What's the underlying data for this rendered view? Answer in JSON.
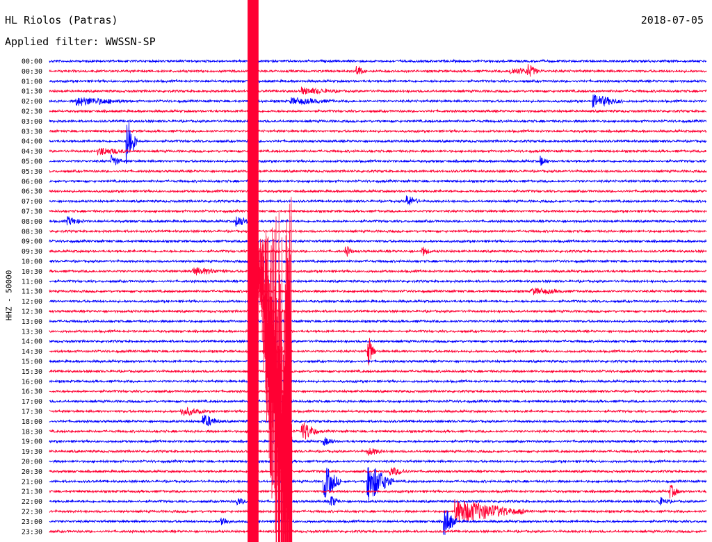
{
  "header": {
    "station": "HL Riolos (Patras)",
    "date": "2018-07-05",
    "filter": "Applied filter: WWSSN-SP"
  },
  "chart_data": {
    "type": "line",
    "title": "HL Riolos (Patras)",
    "subtitle": "Applied filter: WWSSN-SP",
    "ylabel": "HHZ - 50000",
    "xlabel": "",
    "grid": false,
    "colors": {
      "odd_hour": "#0000ff",
      "half_hour": "#ff0033"
    },
    "rows": [
      "00:00",
      "00:30",
      "01:00",
      "01:30",
      "02:00",
      "02:30",
      "03:00",
      "03:30",
      "04:00",
      "04:30",
      "05:00",
      "05:30",
      "06:00",
      "06:30",
      "07:00",
      "07:30",
      "08:00",
      "08:30",
      "09:00",
      "09:30",
      "10:00",
      "10:30",
      "11:00",
      "11:30",
      "12:00",
      "12:30",
      "13:00",
      "13:30",
      "14:00",
      "14:30",
      "15:00",
      "15:30",
      "16:00",
      "16:30",
      "17:00",
      "17:30",
      "18:00",
      "18:30",
      "19:00",
      "19:30",
      "20:00",
      "20:30",
      "21:00",
      "21:30",
      "22:00",
      "22:30",
      "23:00",
      "23:30"
    ],
    "row_x_range": [
      0,
      30
    ],
    "events": [
      {
        "row": 1,
        "x": 14.0,
        "amp": 1.2,
        "dur": 0.4
      },
      {
        "row": 1,
        "x": 21.0,
        "amp": 0.6,
        "dur": 1.6
      },
      {
        "row": 1,
        "x": 21.8,
        "amp": 1.2,
        "dur": 0.5
      },
      {
        "row": 3,
        "x": 11.5,
        "amp": 0.6,
        "dur": 1.8
      },
      {
        "row": 4,
        "x": 1.2,
        "amp": 0.8,
        "dur": 2.4
      },
      {
        "row": 4,
        "x": 11.0,
        "amp": 0.6,
        "dur": 2.0
      },
      {
        "row": 4,
        "x": 24.8,
        "amp": 1.2,
        "dur": 1.4
      },
      {
        "row": 8,
        "x": 3.5,
        "amp": 6.0,
        "dur": 0.5
      },
      {
        "row": 9,
        "x": 2.2,
        "amp": 0.7,
        "dur": 1.5
      },
      {
        "row": 10,
        "x": 2.8,
        "amp": 1.2,
        "dur": 0.5
      },
      {
        "row": 10,
        "x": 22.4,
        "amp": 1.0,
        "dur": 0.4
      },
      {
        "row": 14,
        "x": 16.3,
        "amp": 1.2,
        "dur": 0.6
      },
      {
        "row": 16,
        "x": 0.8,
        "amp": 0.8,
        "dur": 0.8
      },
      {
        "row": 16,
        "x": 8.5,
        "amp": 1.2,
        "dur": 0.6
      },
      {
        "row": 19,
        "x": 13.5,
        "amp": 1.1,
        "dur": 0.4
      },
      {
        "row": 19,
        "x": 17.0,
        "amp": 1.0,
        "dur": 0.4
      },
      {
        "row": 21,
        "x": 6.5,
        "amp": 0.7,
        "dur": 1.6
      },
      {
        "row": 23,
        "x": 22.0,
        "amp": 0.6,
        "dur": 1.6
      },
      {
        "row": 29,
        "x": 14.5,
        "amp": 3.6,
        "dur": 0.4
      },
      {
        "row": 35,
        "x": 6.0,
        "amp": 0.8,
        "dur": 1.2
      },
      {
        "row": 36,
        "x": 7.0,
        "amp": 1.3,
        "dur": 0.8
      },
      {
        "row": 37,
        "x": 11.5,
        "amp": 2.0,
        "dur": 0.8
      },
      {
        "row": 38,
        "x": 12.5,
        "amp": 0.8,
        "dur": 0.6
      },
      {
        "row": 39,
        "x": 14.5,
        "amp": 0.7,
        "dur": 0.8
      },
      {
        "row": 41,
        "x": 15.5,
        "amp": 0.8,
        "dur": 1.0
      },
      {
        "row": 42,
        "x": 12.5,
        "amp": 3.5,
        "dur": 0.8
      },
      {
        "row": 42,
        "x": 14.5,
        "amp": 4.0,
        "dur": 1.2
      },
      {
        "row": 43,
        "x": 28.3,
        "amp": 1.4,
        "dur": 0.5
      },
      {
        "row": 44,
        "x": 8.5,
        "amp": 0.8,
        "dur": 0.5
      },
      {
        "row": 44,
        "x": 12.8,
        "amp": 1.2,
        "dur": 0.5
      },
      {
        "row": 44,
        "x": 27.8,
        "amp": 0.8,
        "dur": 0.6
      },
      {
        "row": 45,
        "x": 18.5,
        "amp": 2.4,
        "dur": 3.2
      },
      {
        "row": 46,
        "x": 7.8,
        "amp": 1.0,
        "dur": 0.5
      },
      {
        "row": 46,
        "x": 18.0,
        "amp": 3.0,
        "dur": 0.6
      }
    ],
    "saturated_block": {
      "row_start": 0,
      "row_end": 47,
      "x_start": 9.05,
      "x_end": 9.55
    }
  }
}
